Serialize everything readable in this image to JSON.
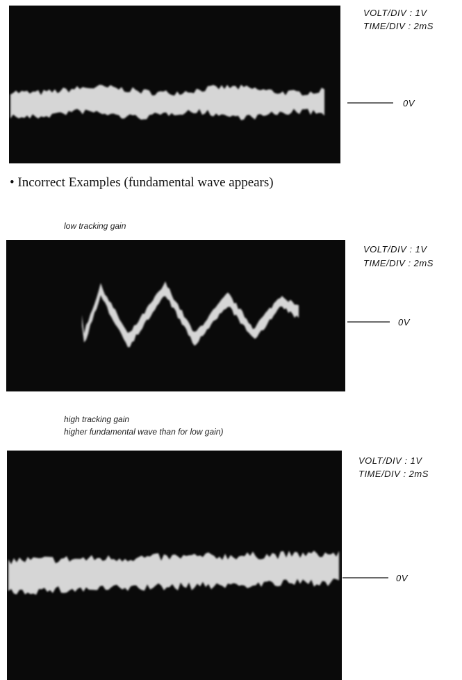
{
  "correct_example": {
    "volt_div": "VOLT/DIV : 1V",
    "time_div": "TIME/DIV : 2mS",
    "zero_label": "0V"
  },
  "heading": "• Incorrect Examples (fundamental wave appears)",
  "incorrect_examples": [
    {
      "captions": [
        "low tracking gain"
      ],
      "volt_div": "VOLT/DIV : 1V",
      "time_div": "TIME/DIV : 2mS",
      "zero_label": "0V"
    },
    {
      "captions": [
        "high tracking gain",
        "higher fundamental wave than for low gain)"
      ],
      "volt_div": "VOLT/DIV : 1V",
      "time_div": "TIME/DIV : 2mS",
      "zero_label": "0V"
    }
  ]
}
